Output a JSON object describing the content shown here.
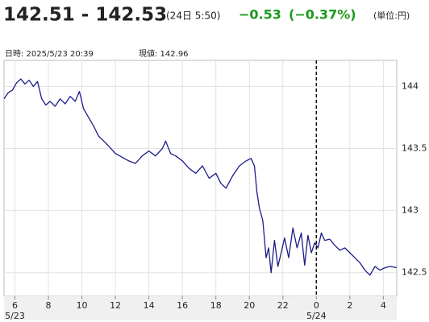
{
  "header": {
    "bid_ask": "142.51 - 142.53",
    "time": "(24日 5:50)",
    "change": "−0.53",
    "change_pct": "(−0.37%)",
    "unit": "(単位:円)"
  },
  "info": {
    "datetime": "日時: 2025/5/23  20:39",
    "current": "現値: 142.96"
  },
  "chart_data": {
    "type": "line",
    "color": "#1c1c8a",
    "grid": true,
    "x": [
      5.35,
      5.6,
      5.85,
      6.1,
      6.35,
      6.6,
      6.85,
      7.1,
      7.35,
      7.6,
      7.85,
      8.1,
      8.4,
      8.7,
      9.0,
      9.3,
      9.6,
      9.85,
      10.1,
      10.4,
      10.7,
      11.0,
      11.3,
      11.6,
      12.0,
      12.4,
      12.8,
      13.2,
      13.6,
      14.0,
      14.4,
      14.8,
      15.0,
      15.3,
      15.6,
      16.0,
      16.4,
      16.8,
      17.2,
      17.6,
      18.0,
      18.3,
      18.6,
      19.0,
      19.4,
      19.8,
      20.1,
      20.3,
      20.45,
      20.6,
      20.8,
      21.0,
      21.15,
      21.3,
      21.5,
      21.7,
      21.9,
      22.1,
      22.35,
      22.6,
      22.85,
      23.1,
      23.3,
      23.5,
      23.7,
      23.9,
      24.1,
      24.3,
      24.5,
      24.8,
      25.1,
      25.4,
      25.7,
      26.0,
      26.3,
      26.6,
      26.9,
      27.2,
      27.5,
      27.8,
      28.1,
      28.4,
      28.8
    ],
    "values": [
      143.9,
      143.95,
      143.97,
      144.03,
      144.06,
      144.02,
      144.05,
      144.0,
      144.04,
      143.9,
      143.85,
      143.88,
      143.84,
      143.9,
      143.86,
      143.92,
      143.88,
      143.96,
      143.82,
      143.75,
      143.68,
      143.6,
      143.56,
      143.52,
      143.46,
      143.43,
      143.4,
      143.38,
      143.44,
      143.48,
      143.44,
      143.5,
      143.56,
      143.46,
      143.44,
      143.4,
      143.34,
      143.3,
      143.36,
      143.26,
      143.3,
      143.22,
      143.18,
      143.28,
      143.36,
      143.4,
      143.42,
      143.36,
      143.15,
      143.02,
      142.92,
      142.62,
      142.7,
      142.5,
      142.76,
      142.55,
      142.66,
      142.78,
      142.62,
      142.86,
      142.7,
      142.82,
      142.56,
      142.8,
      142.66,
      142.74,
      142.7,
      142.82,
      142.76,
      142.77,
      142.72,
      142.68,
      142.7,
      142.66,
      142.62,
      142.58,
      142.52,
      142.48,
      142.55,
      142.52,
      142.54,
      142.55,
      142.54
    ],
    "xlim": [
      5.35,
      28.8
    ],
    "ylim": [
      142.31,
      144.21
    ],
    "xticks": [
      6,
      8,
      10,
      12,
      14,
      16,
      18,
      20,
      22,
      {
        "value": 24,
        "label": "0"
      },
      {
        "value": 26,
        "label": "2"
      },
      {
        "value": 28,
        "label": "4"
      }
    ],
    "yticks": [
      {
        "value": 142.5,
        "label": "142.5"
      },
      {
        "value": 143,
        "label": "143"
      },
      {
        "value": 143.5,
        "label": "143.5"
      },
      {
        "value": 144,
        "label": "144"
      }
    ],
    "date_labels": [
      {
        "value": 6,
        "label": "5/23"
      },
      {
        "value": 24,
        "label": "5/24"
      }
    ]
  }
}
